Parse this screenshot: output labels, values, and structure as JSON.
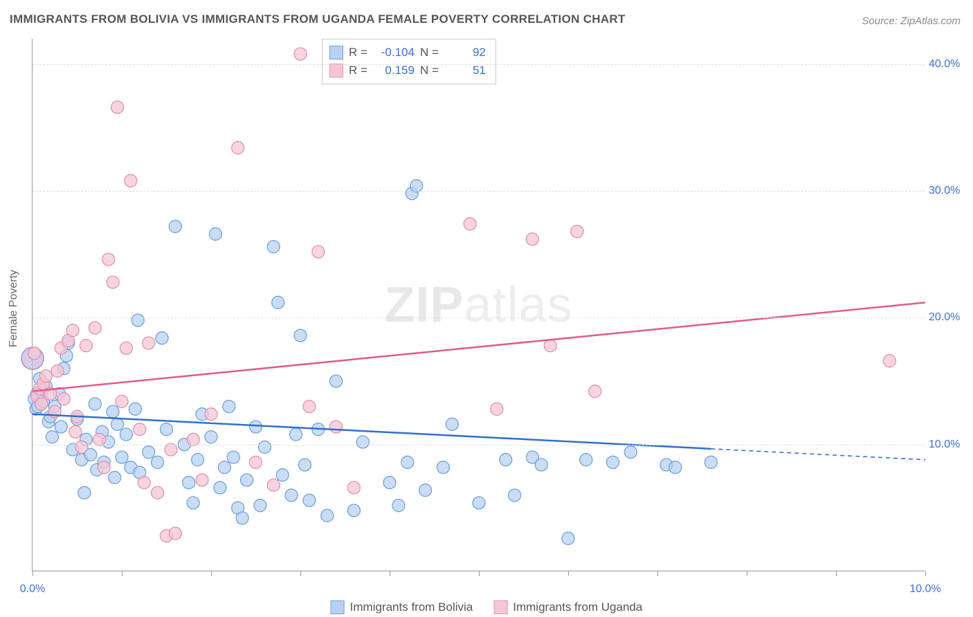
{
  "title": "IMMIGRANTS FROM BOLIVIA VS IMMIGRANTS FROM UGANDA FEMALE POVERTY CORRELATION CHART",
  "source_prefix": "Source: ",
  "source": "ZipAtlas.com",
  "watermark_a": "ZIP",
  "watermark_b": "atlas",
  "y_axis_label": "Female Poverty",
  "chart": {
    "type": "scatter-with-regression",
    "xlim": [
      0,
      10
    ],
    "ylim": [
      0,
      42
    ],
    "y_ticks": [
      10,
      20,
      30,
      40
    ],
    "y_tick_labels": [
      "10.0%",
      "20.0%",
      "30.0%",
      "40.0%"
    ],
    "x_ticks": [
      0,
      1,
      2,
      3,
      4,
      5,
      6,
      7,
      8,
      9,
      10
    ],
    "x_show_labels": {
      "0": "0.0%",
      "10": "10.0%"
    },
    "background_color": "#ffffff",
    "grid_color": "#dddddd",
    "axis_color": "#999999",
    "marker_radius": 9,
    "marker_radius_big": 16,
    "marker_stroke_width": 1.3,
    "line_width_solid": 2.5,
    "dash_pattern": "6,5",
    "series": [
      {
        "name": "Immigrants from Bolivia",
        "fill": "#b8d1f0",
        "stroke": "#6fa3e0",
        "fill_opacity": 0.75,
        "R": "-0.104",
        "N": "92",
        "regression": {
          "y_at_x0": 12.4,
          "y_at_x10": 8.8,
          "solid_until_x": 7.6,
          "color": "#2f6fd0"
        },
        "points": [
          [
            0.02,
            13.6
          ],
          [
            0.05,
            14.0
          ],
          [
            0.04,
            12.8
          ],
          [
            0.08,
            15.2
          ],
          [
            0.1,
            14.2
          ],
          [
            0.06,
            13.0
          ],
          [
            0.12,
            13.4
          ],
          [
            0.15,
            14.6
          ],
          [
            0.18,
            11.8
          ],
          [
            0.2,
            12.2
          ],
          [
            0.22,
            10.6
          ],
          [
            0.25,
            13.0
          ],
          [
            0.3,
            14.0
          ],
          [
            0.32,
            11.4
          ],
          [
            0.35,
            16.0
          ],
          [
            0.38,
            17.0
          ],
          [
            0.4,
            18.0
          ],
          [
            0.45,
            9.6
          ],
          [
            0.5,
            12.0
          ],
          [
            0.55,
            8.8
          ],
          [
            0.58,
            6.2
          ],
          [
            0.6,
            10.4
          ],
          [
            0.65,
            9.2
          ],
          [
            0.7,
            13.2
          ],
          [
            0.72,
            8.0
          ],
          [
            0.78,
            11.0
          ],
          [
            0.8,
            8.6
          ],
          [
            0.85,
            10.2
          ],
          [
            0.9,
            12.6
          ],
          [
            0.92,
            7.4
          ],
          [
            0.95,
            11.6
          ],
          [
            1.0,
            9.0
          ],
          [
            1.05,
            10.8
          ],
          [
            1.1,
            8.2
          ],
          [
            1.15,
            12.8
          ],
          [
            1.18,
            19.8
          ],
          [
            1.2,
            7.8
          ],
          [
            1.3,
            9.4
          ],
          [
            1.4,
            8.6
          ],
          [
            1.45,
            18.4
          ],
          [
            1.5,
            11.2
          ],
          [
            1.6,
            27.2
          ],
          [
            1.7,
            10.0
          ],
          [
            1.75,
            7.0
          ],
          [
            1.8,
            5.4
          ],
          [
            1.85,
            8.8
          ],
          [
            1.9,
            12.4
          ],
          [
            2.0,
            10.6
          ],
          [
            2.05,
            26.6
          ],
          [
            2.1,
            6.6
          ],
          [
            2.15,
            8.2
          ],
          [
            2.2,
            13.0
          ],
          [
            2.25,
            9.0
          ],
          [
            2.3,
            5.0
          ],
          [
            2.4,
            7.2
          ],
          [
            2.5,
            11.4
          ],
          [
            2.55,
            5.2
          ],
          [
            2.6,
            9.8
          ],
          [
            2.7,
            25.6
          ],
          [
            2.75,
            21.2
          ],
          [
            2.8,
            7.6
          ],
          [
            2.9,
            6.0
          ],
          [
            2.95,
            10.8
          ],
          [
            3.0,
            18.6
          ],
          [
            3.05,
            8.4
          ],
          [
            3.1,
            5.6
          ],
          [
            3.2,
            11.2
          ],
          [
            3.4,
            15.0
          ],
          [
            3.6,
            4.8
          ],
          [
            3.7,
            10.2
          ],
          [
            4.0,
            7.0
          ],
          [
            4.1,
            5.2
          ],
          [
            4.2,
            8.6
          ],
          [
            4.25,
            29.8
          ],
          [
            4.3,
            30.4
          ],
          [
            4.4,
            6.4
          ],
          [
            4.6,
            8.2
          ],
          [
            4.7,
            11.6
          ],
          [
            5.0,
            5.4
          ],
          [
            5.3,
            8.8
          ],
          [
            5.4,
            6.0
          ],
          [
            5.6,
            9.0
          ],
          [
            5.7,
            8.4
          ],
          [
            6.0,
            2.6
          ],
          [
            6.2,
            8.8
          ],
          [
            6.5,
            8.6
          ],
          [
            6.7,
            9.4
          ],
          [
            7.1,
            8.4
          ],
          [
            7.2,
            8.2
          ],
          [
            7.6,
            8.6
          ],
          [
            2.35,
            4.2
          ],
          [
            3.3,
            4.4
          ]
        ]
      },
      {
        "name": "Immigrants from Uganda",
        "fill": "#f5c6d6",
        "stroke": "#e492ad",
        "fill_opacity": 0.75,
        "R": "0.159",
        "N": "51",
        "regression": {
          "y_at_x0": 14.2,
          "y_at_x10": 21.2,
          "solid_until_x": 10,
          "color": "#e25b85"
        },
        "points": [
          [
            0.05,
            13.8
          ],
          [
            0.08,
            14.4
          ],
          [
            0.1,
            13.2
          ],
          [
            0.12,
            14.8
          ],
          [
            0.15,
            15.4
          ],
          [
            0.2,
            14.0
          ],
          [
            0.25,
            12.6
          ],
          [
            0.28,
            15.8
          ],
          [
            0.32,
            17.6
          ],
          [
            0.35,
            13.6
          ],
          [
            0.4,
            18.2
          ],
          [
            0.45,
            19.0
          ],
          [
            0.48,
            11.0
          ],
          [
            0.5,
            12.2
          ],
          [
            0.55,
            9.8
          ],
          [
            0.6,
            17.8
          ],
          [
            0.7,
            19.2
          ],
          [
            0.75,
            10.4
          ],
          [
            0.8,
            8.2
          ],
          [
            0.85,
            24.6
          ],
          [
            0.9,
            22.8
          ],
          [
            0.95,
            36.6
          ],
          [
            1.0,
            13.4
          ],
          [
            1.05,
            17.6
          ],
          [
            1.1,
            30.8
          ],
          [
            1.2,
            11.2
          ],
          [
            1.25,
            7.0
          ],
          [
            1.3,
            18.0
          ],
          [
            1.4,
            6.2
          ],
          [
            1.5,
            2.8
          ],
          [
            1.55,
            9.6
          ],
          [
            1.6,
            3.0
          ],
          [
            1.8,
            10.4
          ],
          [
            1.9,
            7.2
          ],
          [
            2.0,
            12.4
          ],
          [
            2.3,
            33.4
          ],
          [
            2.5,
            8.6
          ],
          [
            2.7,
            6.8
          ],
          [
            3.0,
            40.8
          ],
          [
            3.1,
            13.0
          ],
          [
            3.2,
            25.2
          ],
          [
            3.4,
            11.4
          ],
          [
            3.6,
            6.6
          ],
          [
            4.9,
            27.4
          ],
          [
            5.2,
            12.8
          ],
          [
            5.6,
            26.2
          ],
          [
            5.8,
            17.8
          ],
          [
            6.1,
            26.8
          ],
          [
            6.3,
            14.2
          ],
          [
            9.6,
            16.6
          ],
          [
            0.02,
            17.2
          ]
        ]
      }
    ],
    "big_points": [
      {
        "x": 0.0,
        "y": 16.8,
        "fill": "#c8b8e0",
        "stroke": "#9a84c4"
      }
    ]
  }
}
